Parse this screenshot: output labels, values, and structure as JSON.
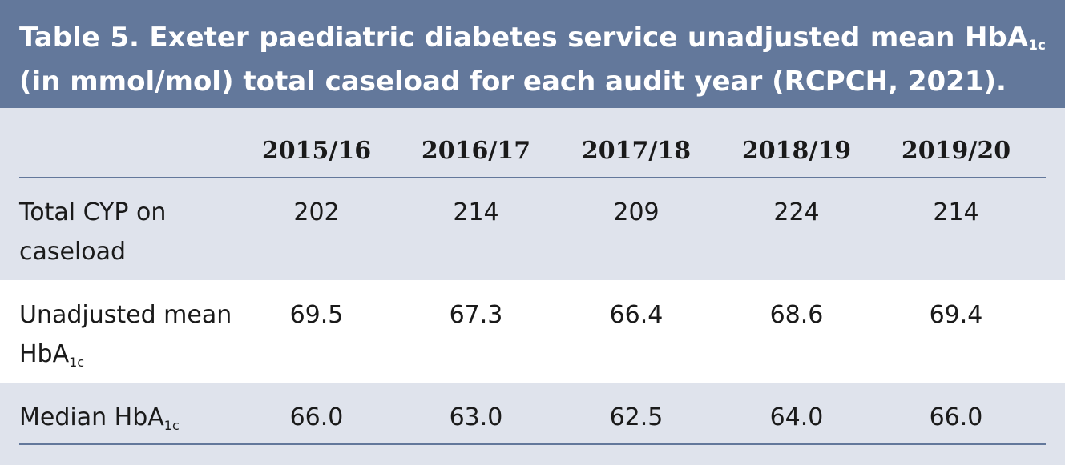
{
  "caption": {
    "prefix": "Table 5. Exeter paediatric diabetes service unadjusted mean HbA",
    "sub": "1c",
    "suffix": " (in mmol/mol) total caseload for each audit year (RCPCH, 2021)."
  },
  "table": {
    "columns": [
      "2015/16",
      "2016/17",
      "2017/18",
      "2018/19",
      "2019/20"
    ],
    "rows": [
      {
        "label_main": "Total CYP on caseload",
        "label_sub": "",
        "values": [
          "202",
          "214",
          "209",
          "224",
          "214"
        ]
      },
      {
        "label_main": "Unadjusted mean HbA",
        "label_sub": "1c",
        "values": [
          "69.5",
          "67.3",
          "66.4",
          "68.6",
          "69.4"
        ]
      },
      {
        "label_main": "Median HbA",
        "label_sub": "1c",
        "values": [
          "66.0",
          "63.0",
          "62.5",
          "64.0",
          "66.0"
        ]
      }
    ]
  },
  "colors": {
    "header_bg": "#63789b",
    "table_bg": "#dfe3ec",
    "highlight_row_bg": "#ffffff",
    "rule": "#63789b"
  }
}
